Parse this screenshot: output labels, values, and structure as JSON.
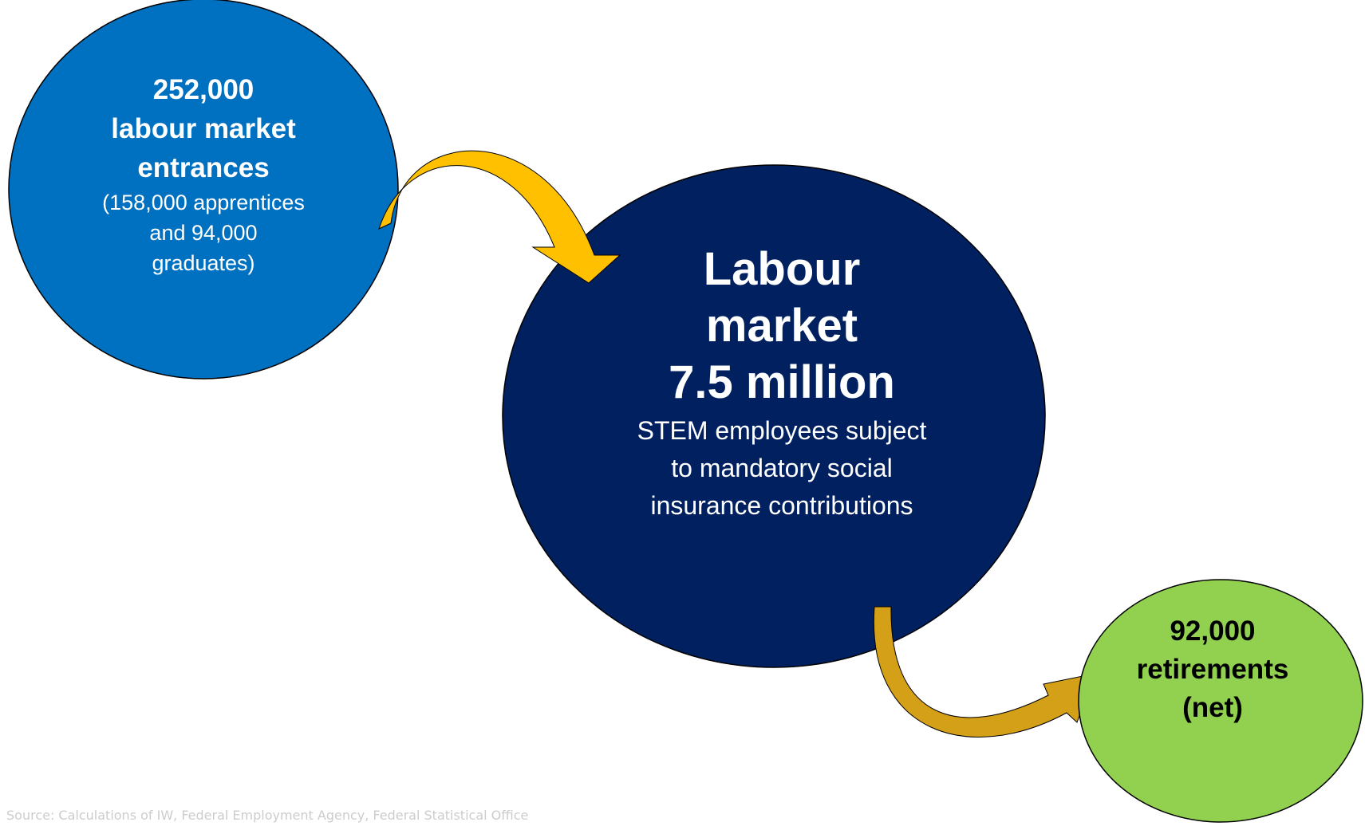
{
  "nodes": {
    "entrances": {
      "count": "252,000",
      "label_line1": "labour market",
      "label_line2": "entrances",
      "detail_line1": "(158,000 apprentices",
      "detail_line2": "and 94,000",
      "detail_line3": "graduates)",
      "fill": "#0070C0"
    },
    "labour_market": {
      "title_line1": "Labour",
      "title_line2": "market",
      "total": "7.5 million",
      "detail_line1": "STEM employees subject",
      "detail_line2": "to mandatory social",
      "detail_line3": "insurance contributions",
      "fill": "#002060"
    },
    "retirements": {
      "count": "92,000",
      "label_line1": "retirements",
      "label_line2": "(net)",
      "fill": "#92D050"
    }
  },
  "arrows": {
    "inflow_color": "#FFC000",
    "outflow_color": "#D4A017"
  },
  "source_note": "Source: Calculations of IW, Federal Employment Agency, Federal Statistical Office"
}
